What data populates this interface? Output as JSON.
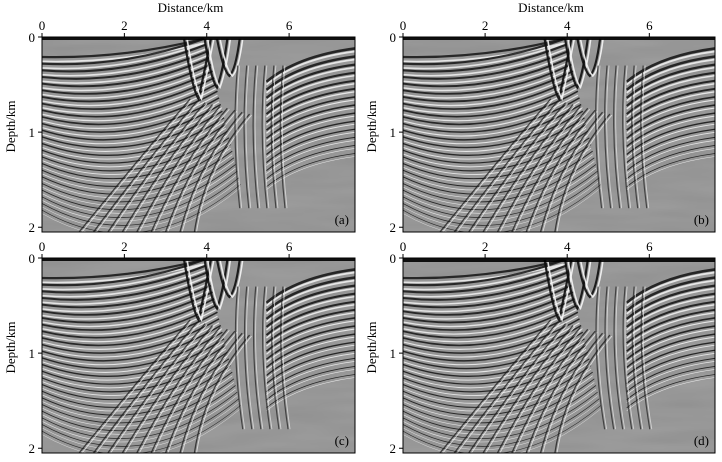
{
  "figure": {
    "xlabel": "Distance/km",
    "ylabel": "Depth/km",
    "xticks": [
      "0",
      "2",
      "4",
      "6"
    ],
    "yticks": [
      "0",
      "1",
      "2"
    ],
    "panels": [
      {
        "label": "(a)",
        "show_xlabel": true,
        "show_ylabel": true
      },
      {
        "label": "(b)",
        "show_xlabel": true,
        "show_ylabel": true
      },
      {
        "label": "(c)",
        "show_xlabel": false,
        "show_ylabel": true
      },
      {
        "label": "(d)",
        "show_xlabel": false,
        "show_ylabel": true
      }
    ]
  }
}
